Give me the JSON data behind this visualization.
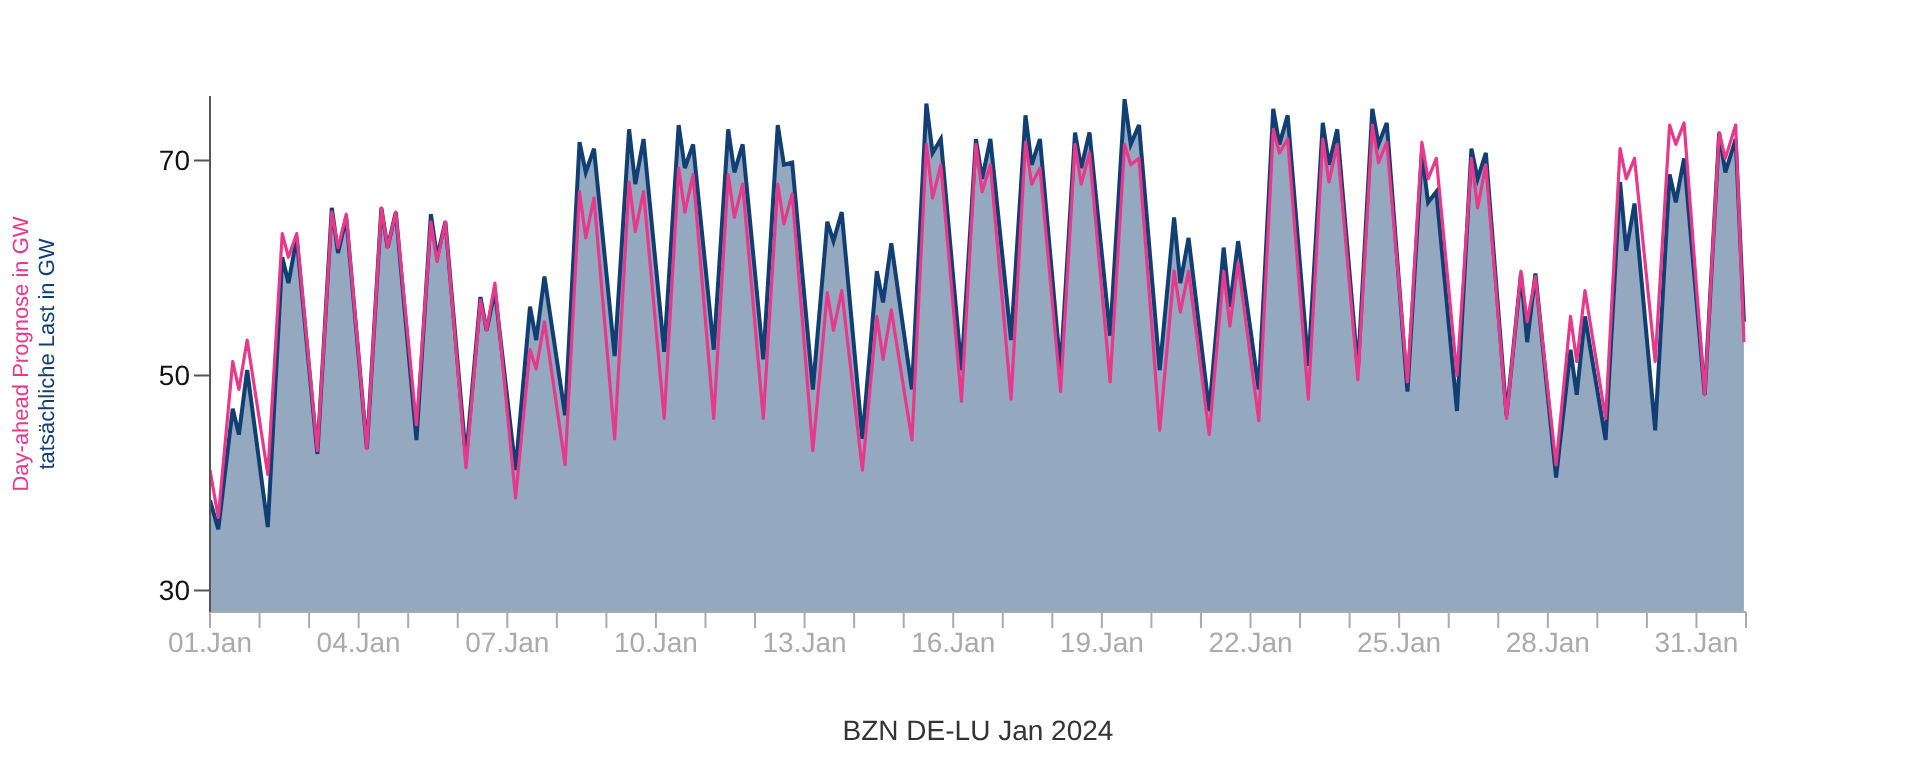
{
  "chart_data": {
    "type": "line",
    "xlabel": "BZN DE-LU Jan 2024",
    "x": [
      "2024-01-01T00:00",
      "2024-01-01T04:00",
      "2024-01-01T11:00",
      "2024-01-01T14:00",
      "2024-01-01T18:00",
      "2024-01-02T04:00",
      "2024-01-02T11:00",
      "2024-01-02T14:00",
      "2024-01-02T18:00",
      "2024-01-03T04:00",
      "2024-01-03T11:00",
      "2024-01-03T14:00",
      "2024-01-03T18:00",
      "2024-01-04T04:00",
      "2024-01-04T11:00",
      "2024-01-04T14:00",
      "2024-01-04T18:00",
      "2024-01-05T04:00",
      "2024-01-05T11:00",
      "2024-01-05T14:00",
      "2024-01-05T18:00",
      "2024-01-06T04:00",
      "2024-01-06T11:00",
      "2024-01-06T14:00",
      "2024-01-06T18:00",
      "2024-01-07T04:00",
      "2024-01-07T11:00",
      "2024-01-07T14:00",
      "2024-01-07T18:00",
      "2024-01-08T04:00",
      "2024-01-08T11:00",
      "2024-01-08T14:00",
      "2024-01-08T18:00",
      "2024-01-09T04:00",
      "2024-01-09T11:00",
      "2024-01-09T14:00",
      "2024-01-09T18:00",
      "2024-01-10T04:00",
      "2024-01-10T11:00",
      "2024-01-10T14:00",
      "2024-01-10T18:00",
      "2024-01-11T04:00",
      "2024-01-11T11:00",
      "2024-01-11T14:00",
      "2024-01-11T18:00",
      "2024-01-12T04:00",
      "2024-01-12T11:00",
      "2024-01-12T14:00",
      "2024-01-12T18:00",
      "2024-01-13T04:00",
      "2024-01-13T11:00",
      "2024-01-13T14:00",
      "2024-01-13T18:00",
      "2024-01-14T04:00",
      "2024-01-14T11:00",
      "2024-01-14T14:00",
      "2024-01-14T18:00",
      "2024-01-15T04:00",
      "2024-01-15T11:00",
      "2024-01-15T14:00",
      "2024-01-15T18:00",
      "2024-01-16T04:00",
      "2024-01-16T11:00",
      "2024-01-16T14:00",
      "2024-01-16T18:00",
      "2024-01-17T04:00",
      "2024-01-17T11:00",
      "2024-01-17T14:00",
      "2024-01-17T18:00",
      "2024-01-18T04:00",
      "2024-01-18T11:00",
      "2024-01-18T14:00",
      "2024-01-18T18:00",
      "2024-01-19T04:00",
      "2024-01-19T11:00",
      "2024-01-19T14:00",
      "2024-01-19T18:00",
      "2024-01-20T04:00",
      "2024-01-20T11:00",
      "2024-01-20T14:00",
      "2024-01-20T18:00",
      "2024-01-21T04:00",
      "2024-01-21T11:00",
      "2024-01-21T14:00",
      "2024-01-21T18:00",
      "2024-01-22T04:00",
      "2024-01-22T11:00",
      "2024-01-22T14:00",
      "2024-01-22T18:00",
      "2024-01-23T04:00",
      "2024-01-23T11:00",
      "2024-01-23T14:00",
      "2024-01-23T18:00",
      "2024-01-24T04:00",
      "2024-01-24T11:00",
      "2024-01-24T14:00",
      "2024-01-24T18:00",
      "2024-01-25T04:00",
      "2024-01-25T11:00",
      "2024-01-25T14:00",
      "2024-01-25T18:00",
      "2024-01-26T04:00",
      "2024-01-26T11:00",
      "2024-01-26T14:00",
      "2024-01-26T18:00",
      "2024-01-27T04:00",
      "2024-01-27T11:00",
      "2024-01-27T14:00",
      "2024-01-27T18:00",
      "2024-01-28T04:00",
      "2024-01-28T11:00",
      "2024-01-28T14:00",
      "2024-01-28T18:00",
      "2024-01-29T04:00",
      "2024-01-29T11:00",
      "2024-01-29T14:00",
      "2024-01-29T18:00",
      "2024-01-30T04:00",
      "2024-01-30T11:00",
      "2024-01-30T14:00",
      "2024-01-30T18:00",
      "2024-01-31T04:00",
      "2024-01-31T11:00",
      "2024-01-31T14:00",
      "2024-01-31T19:00",
      "2024-01-31T23:00"
    ],
    "series": [
      {
        "name": "tatsächliche Last in GW",
        "type": "area",
        "color": "#123f73",
        "values": [
          38.4,
          35.7,
          46.9,
          44.5,
          50.5,
          35.9,
          61.0,
          58.6,
          62.8,
          42.7,
          65.6,
          61.4,
          64.7,
          43.2,
          65.6,
          61.9,
          65.2,
          44.0,
          65.0,
          61.0,
          64.3,
          42.3,
          57.3,
          54.2,
          57.9,
          41.2,
          56.4,
          53.3,
          59.2,
          46.3,
          71.7,
          68.9,
          71.1,
          51.8,
          72.9,
          67.8,
          72.0,
          52.2,
          73.3,
          69.3,
          71.5,
          52.4,
          72.9,
          68.9,
          71.5,
          51.5,
          73.3,
          69.6,
          69.8,
          48.7,
          64.3,
          62.5,
          65.2,
          44.1,
          59.7,
          56.8,
          62.3,
          48.7,
          75.3,
          70.7,
          72.0,
          50.5,
          72.0,
          68.3,
          72.0,
          53.3,
          74.2,
          69.6,
          72.0,
          50.5,
          72.6,
          69.3,
          72.6,
          53.7,
          75.7,
          71.5,
          73.3,
          50.5,
          64.7,
          58.6,
          62.8,
          46.7,
          61.9,
          56.4,
          62.5,
          48.7,
          74.8,
          71.5,
          74.2,
          50.9,
          73.5,
          69.6,
          72.9,
          50.5,
          74.8,
          71.5,
          73.5,
          48.5,
          70.7,
          66.1,
          67.1,
          46.7,
          71.1,
          68.3,
          70.7,
          46.3,
          59.5,
          53.1,
          59.5,
          40.5,
          52.4,
          48.2,
          55.5,
          44.0,
          68.0,
          61.6,
          66.0,
          44.9,
          68.7,
          66.1,
          70.2,
          48.2,
          72.6,
          68.9,
          72.0,
          55.0
        ]
      },
      {
        "name": "Day-ahead Prognose in GW",
        "color": "#e8388a",
        "values": [
          41.2,
          36.8,
          51.3,
          48.7,
          53.3,
          40.8,
          63.2,
          61.0,
          63.2,
          43.0,
          65.2,
          61.9,
          65.0,
          43.2,
          65.6,
          61.9,
          65.2,
          45.4,
          64.3,
          60.6,
          64.3,
          41.4,
          57.0,
          54.2,
          58.6,
          38.6,
          52.4,
          50.6,
          55.0,
          41.7,
          67.1,
          62.8,
          66.5,
          44.1,
          68.0,
          63.4,
          67.1,
          46.0,
          69.3,
          65.2,
          68.7,
          46.0,
          68.7,
          64.7,
          67.8,
          46.0,
          67.8,
          64.1,
          66.9,
          43.0,
          57.7,
          54.2,
          57.9,
          41.2,
          55.5,
          51.5,
          56.1,
          44.0,
          71.5,
          66.5,
          69.6,
          47.6,
          71.5,
          67.1,
          69.6,
          47.8,
          71.7,
          67.8,
          69.3,
          48.5,
          71.5,
          67.8,
          70.7,
          49.4,
          71.5,
          69.6,
          70.2,
          44.9,
          59.7,
          55.9,
          59.7,
          44.5,
          59.7,
          54.6,
          60.5,
          45.8,
          72.9,
          70.7,
          72.0,
          47.8,
          72.0,
          68.0,
          71.5,
          49.6,
          73.3,
          69.8,
          71.7,
          49.4,
          71.7,
          68.3,
          70.2,
          50.0,
          70.2,
          65.6,
          69.6,
          46.0,
          59.7,
          55.0,
          59.2,
          41.7,
          55.5,
          51.3,
          57.9,
          46.0,
          71.1,
          68.3,
          70.2,
          51.3,
          73.3,
          71.5,
          73.5,
          48.2,
          72.6,
          70.2,
          73.3,
          53.1
        ]
      }
    ],
    "xlim": [
      "2024-01-01T00:00",
      "2024-02-01T00:00"
    ],
    "xticks": [
      {
        "value": "2024-01-01",
        "label": "01.Jan"
      },
      {
        "value": "2024-01-02",
        "label": null
      },
      {
        "value": "2024-01-03",
        "label": null
      },
      {
        "value": "2024-01-04",
        "label": "04.Jan"
      },
      {
        "value": "2024-01-05",
        "label": null
      },
      {
        "value": "2024-01-06",
        "label": null
      },
      {
        "value": "2024-01-07",
        "label": "07.Jan"
      },
      {
        "value": "2024-01-08",
        "label": null
      },
      {
        "value": "2024-01-09",
        "label": null
      },
      {
        "value": "2024-01-10",
        "label": "10.Jan"
      },
      {
        "value": "2024-01-11",
        "label": null
      },
      {
        "value": "2024-01-12",
        "label": null
      },
      {
        "value": "2024-01-13",
        "label": "13.Jan"
      },
      {
        "value": "2024-01-14",
        "label": null
      },
      {
        "value": "2024-01-15",
        "label": null
      },
      {
        "value": "2024-01-16",
        "label": "16.Jan"
      },
      {
        "value": "2024-01-17",
        "label": null
      },
      {
        "value": "2024-01-18",
        "label": null
      },
      {
        "value": "2024-01-19",
        "label": "19.Jan"
      },
      {
        "value": "2024-01-20",
        "label": null
      },
      {
        "value": "2024-01-21",
        "label": null
      },
      {
        "value": "2024-01-22",
        "label": "22.Jan"
      },
      {
        "value": "2024-01-23",
        "label": null
      },
      {
        "value": "2024-01-24",
        "label": null
      },
      {
        "value": "2024-01-25",
        "label": "25.Jan"
      },
      {
        "value": "2024-01-26",
        "label": null
      },
      {
        "value": "2024-01-27",
        "label": null
      },
      {
        "value": "2024-01-28",
        "label": "28.Jan"
      },
      {
        "value": "2024-01-29",
        "label": null
      },
      {
        "value": "2024-01-30",
        "label": null
      },
      {
        "value": "2024-01-31",
        "label": "31.Jan"
      },
      {
        "value": "2024-02-01",
        "label": null
      }
    ],
    "ylim": [
      28,
      76
    ],
    "yticks": [
      30,
      50,
      70
    ],
    "grid": false,
    "legend": false,
    "marker": "none",
    "line_style": "solid"
  }
}
